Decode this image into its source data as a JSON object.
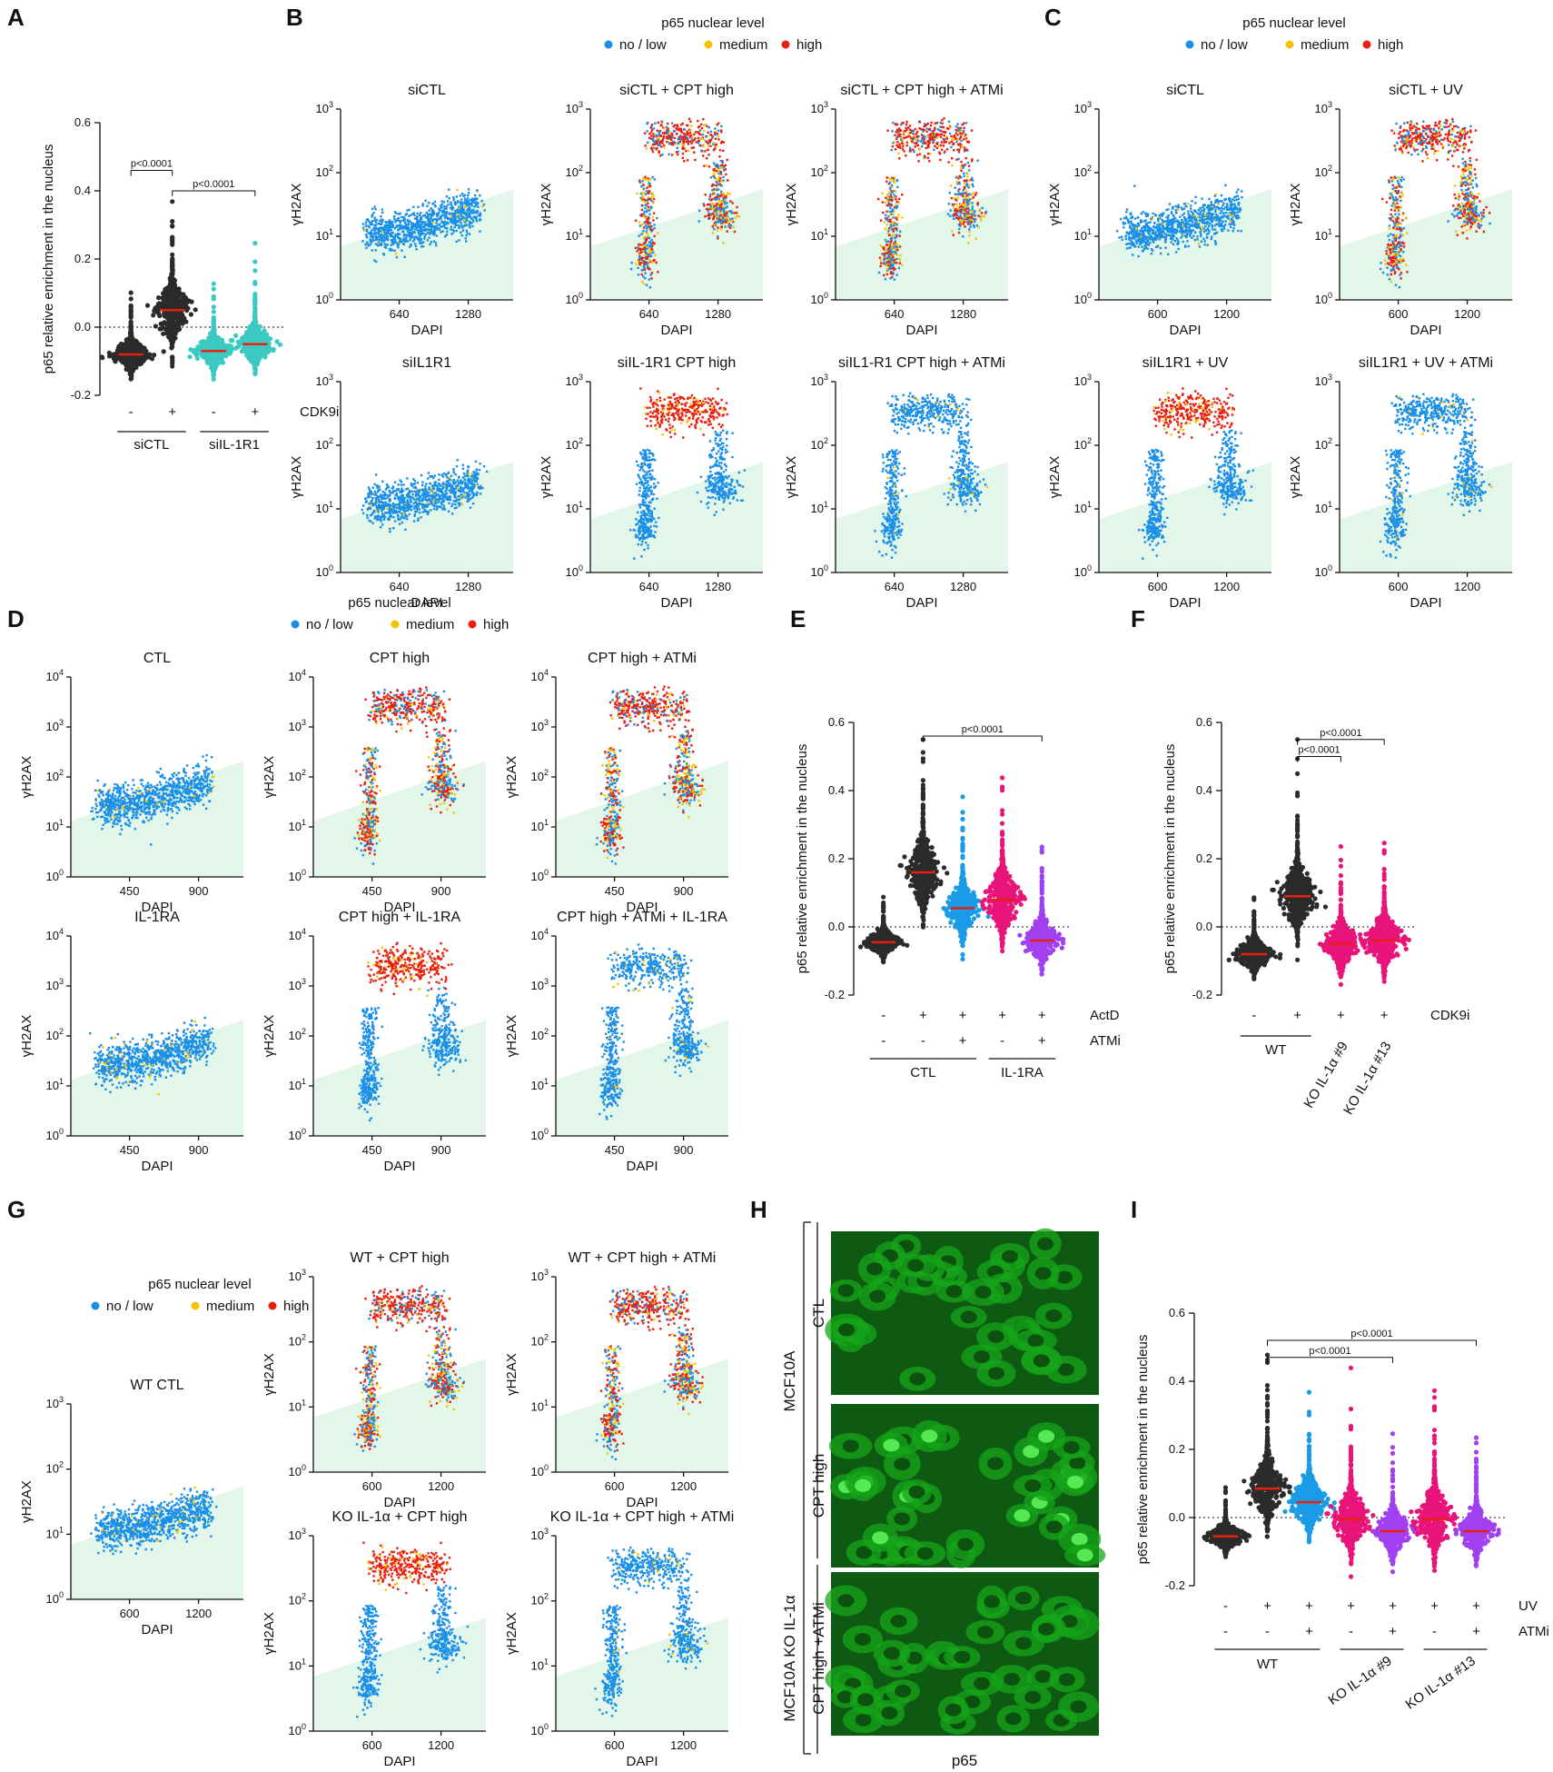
{
  "colors": {
    "no_low": "#1a8fe8",
    "medium": "#f5c400",
    "high": "#e8200f",
    "dark": "#2b2b2b",
    "teal": "#3cc9c2",
    "blue": "#1a9be8",
    "magenta": "#e8147a",
    "purple": "#a040f0",
    "median": "#e8200f",
    "zone": "#e3f6ea",
    "micro": "#16a51a"
  },
  "panels": {
    "A": {
      "label": "A",
      "ylabel": "p65 relative enrichment in the nucleus",
      "yticks": [
        "0.6",
        "0.4",
        "0.2",
        "0.0",
        "-0.2"
      ],
      "signs": [
        "-",
        "+",
        "-",
        "+"
      ],
      "treat": "CDK9i",
      "groups": [
        "siCTL",
        "siIL-1R1"
      ],
      "pvals": [
        "p<0.0001",
        "p<0.0001"
      ]
    },
    "B": {
      "label": "B",
      "legend_title": "p65 nuclear level",
      "titles": [
        "siCTL",
        "siCTL + CPT high",
        "siCTL + CPT high + ATMi",
        "siIL1R1",
        "siIL-1R1 CPT high",
        "siIL1-R1 CPT high + ATMi"
      ],
      "xticks": [
        "640",
        "1280"
      ]
    },
    "C": {
      "label": "C",
      "legend_title": "p65 nuclear level",
      "titles": [
        "siCTL",
        "siCTL + UV",
        "siIL1R1 + UV",
        "siIL1R1 + UV + ATMi"
      ],
      "xticks": [
        "600",
        "1200"
      ]
    },
    "D": {
      "label": "D",
      "legend_title": "p65 nuclear level",
      "titles": [
        "CTL",
        "CPT high",
        "CPT high + ATMi",
        "IL-1RA",
        "CPT high + IL-1RA",
        "CPT high + ATMi + IL-1RA"
      ],
      "xticks": [
        "450",
        "900"
      ]
    },
    "E": {
      "label": "E",
      "ylabel": "p65 relative enrichment in the nucleus",
      "yticks": [
        "0.6",
        "0.4",
        "0.2",
        "0.0",
        "-0.2"
      ],
      "row1": [
        "-",
        "+",
        "+",
        "+",
        "+"
      ],
      "row2": [
        "-",
        "-",
        "+",
        "-",
        "+"
      ],
      "treat1": "ActD",
      "treat2": "ATMi",
      "groups": [
        "CTL",
        "IL-1RA"
      ],
      "pvals": [
        "p<0.0001"
      ]
    },
    "F": {
      "label": "F",
      "ylabel": "p65 relative enrichment in the nucleus",
      "yticks": [
        "0.6",
        "0.4",
        "0.2",
        "0.0",
        "-0.2"
      ],
      "signs": [
        "-",
        "+",
        "+",
        "+"
      ],
      "treat": "CDK9i",
      "groups": [
        "WT",
        "KO IL-1α #9",
        "KO IL-1α #13"
      ],
      "pvals": [
        "p<0.0001",
        "p<0.0001"
      ]
    },
    "G": {
      "label": "G",
      "legend_title": "p65 nuclear level",
      "titles": [
        "WT CTL",
        "WT + CPT high",
        "WT + CPT high + ATMi",
        "KO IL-1α + CPT high",
        "KO IL-1α + CPT high + ATMi"
      ],
      "xticks": [
        "600",
        "1200"
      ]
    },
    "H": {
      "label": "H",
      "side_labels": [
        "MCF10A",
        "CTL",
        "CPT high",
        "MCF10A KO IL-1α",
        "CPT high +ATMi"
      ],
      "bottom": "p65"
    },
    "I": {
      "label": "I",
      "ylabel": "p65 relative enrichment in the nucleus",
      "yticks": [
        "0.6",
        "0.4",
        "0.2",
        "0.0",
        "-0.2"
      ],
      "row1": [
        "-",
        "+",
        "+",
        "+",
        "+",
        "+",
        "+"
      ],
      "row2": [
        "-",
        "-",
        "+",
        "-",
        "+",
        "-",
        "+"
      ],
      "treat1": "UV",
      "treat2": "ATMi",
      "groups": [
        "WT",
        "KO IL-1α #9",
        "KO IL-1α #13"
      ],
      "pvals": [
        "p<0.0001",
        "p<0.0001"
      ]
    }
  },
  "legend": {
    "no_low": "no / low",
    "medium": "medium",
    "high": "high"
  },
  "axes": {
    "x": "DAPI",
    "y": "γH2AX"
  },
  "sup": {
    "base": "10",
    "exps": [
      "0",
      "1",
      "2",
      "3",
      "4"
    ]
  }
}
